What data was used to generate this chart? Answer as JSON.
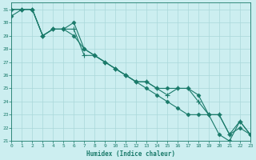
{
  "xlabel": "Humidex (Indice chaleur)",
  "background_color": "#cceef0",
  "grid_color": "#aad8da",
  "line_color": "#1a7a6a",
  "x_values": [
    0,
    1,
    2,
    3,
    4,
    5,
    6,
    7,
    8,
    9,
    10,
    11,
    12,
    13,
    14,
    15,
    16,
    17,
    18,
    19,
    20,
    21,
    22,
    23
  ],
  "line1": [
    31,
    31,
    31,
    29,
    29.5,
    29.5,
    30,
    28,
    27.5,
    27,
    26.5,
    26,
    25.5,
    25,
    24.5,
    24,
    23.5,
    23,
    23,
    23,
    21.5,
    21,
    22.5,
    21.5
  ],
  "line2": [
    31,
    31,
    31,
    29,
    29.5,
    29.5,
    29.5,
    27.5,
    27.5,
    27,
    26.5,
    26,
    25.5,
    25.5,
    25,
    24.5,
    25,
    25,
    24,
    23,
    23,
    21.5,
    22.5,
    21.5
  ],
  "line3": [
    30.5,
    31,
    31,
    29,
    29.5,
    29.5,
    29,
    28,
    27.5,
    27,
    26.5,
    26,
    25.5,
    25.5,
    25,
    25,
    25,
    25,
    24.5,
    23,
    23,
    21.5,
    22,
    21.5
  ],
  "xlim": [
    0,
    23
  ],
  "ylim": [
    21,
    31.5
  ],
  "yticks": [
    21,
    22,
    23,
    24,
    25,
    26,
    27,
    28,
    29,
    30,
    31
  ],
  "xticks": [
    0,
    1,
    2,
    3,
    4,
    5,
    6,
    7,
    8,
    9,
    10,
    11,
    12,
    13,
    14,
    15,
    16,
    17,
    18,
    19,
    20,
    21,
    22,
    23
  ]
}
